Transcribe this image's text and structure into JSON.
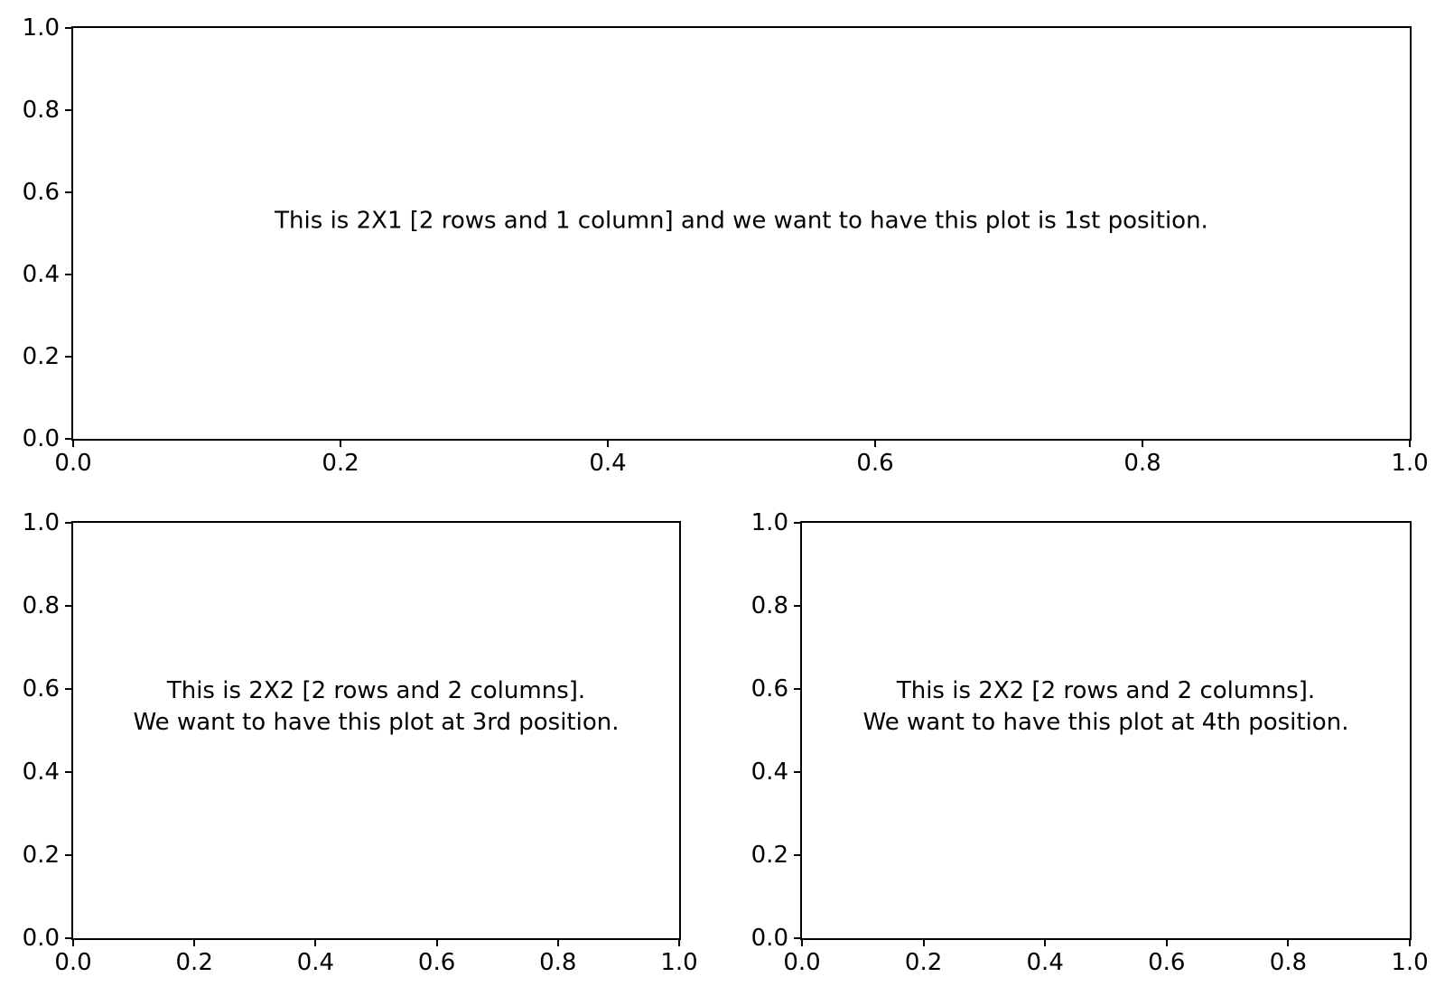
{
  "figure": {
    "background_color": "#ffffff",
    "spine_color": "#000000",
    "text_color": "#000000"
  },
  "chart_data": [
    {
      "type": "empty-axes",
      "subplot": "2x1 grid [2 rows, 1 column], position 1 (top, full width)",
      "annotation": "This is 2X1 [2 rows and 1 column] and we want to have this plot is 1st position.",
      "title": "",
      "xlabel": "",
      "ylabel": "",
      "xlim": [
        0.0,
        1.0
      ],
      "ylim": [
        0.0,
        1.0
      ],
      "xticks": [
        "0.0",
        "0.2",
        "0.4",
        "0.6",
        "0.8",
        "1.0"
      ],
      "yticks": [
        "0.0",
        "0.2",
        "0.4",
        "0.6",
        "0.8",
        "1.0"
      ],
      "grid": false,
      "legend": false,
      "series": []
    },
    {
      "type": "empty-axes",
      "subplot": "2x2 grid [2 rows, 2 columns], position 3 (bottom left)",
      "annotation": "This is 2X2 [2 rows and 2 columns].\nWe want to have this plot at 3rd position.",
      "title": "",
      "xlabel": "",
      "ylabel": "",
      "xlim": [
        0.0,
        1.0
      ],
      "ylim": [
        0.0,
        1.0
      ],
      "xticks": [
        "0.0",
        "0.2",
        "0.4",
        "0.6",
        "0.8",
        "1.0"
      ],
      "yticks": [
        "0.0",
        "0.2",
        "0.4",
        "0.6",
        "0.8",
        "1.0"
      ],
      "grid": false,
      "legend": false,
      "series": []
    },
    {
      "type": "empty-axes",
      "subplot": "2x2 grid [2 rows, 2 columns], position 4 (bottom right)",
      "annotation": "This is 2X2 [2 rows and 2 columns].\nWe want to have this plot at 4th position.",
      "title": "",
      "xlabel": "",
      "ylabel": "",
      "xlim": [
        0.0,
        1.0
      ],
      "ylim": [
        0.0,
        1.0
      ],
      "xticks": [
        "0.0",
        "0.2",
        "0.4",
        "0.6",
        "0.8",
        "1.0"
      ],
      "yticks": [
        "0.0",
        "0.2",
        "0.4",
        "0.6",
        "0.8",
        "1.0"
      ],
      "grid": false,
      "legend": false,
      "series": []
    }
  ]
}
